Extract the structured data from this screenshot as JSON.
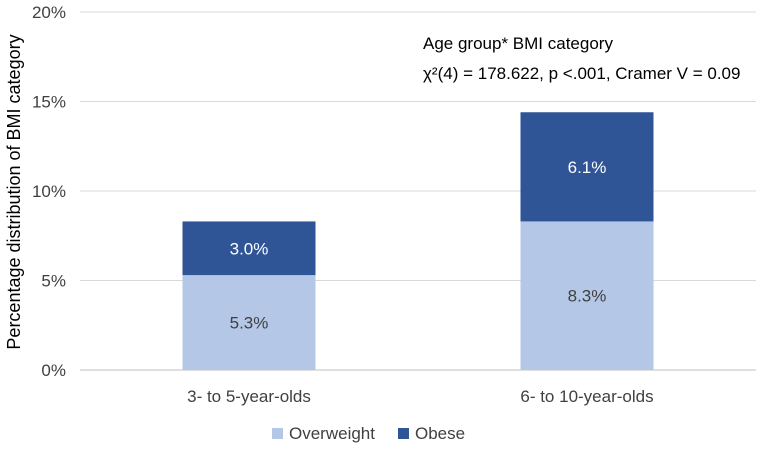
{
  "chart_data": {
    "type": "bar",
    "stacked": true,
    "title": "",
    "xlabel": "",
    "ylabel": "Percentage distribution of BMI category",
    "ylim": [
      0,
      20
    ],
    "yticks": [
      0,
      5,
      10,
      15,
      20
    ],
    "ytick_labels": [
      "0%",
      "5%",
      "10%",
      "15%",
      "20%"
    ],
    "categories": [
      "3- to 5-year-olds",
      "6- to 10-year-olds"
    ],
    "series": [
      {
        "name": "Overweight",
        "values": [
          5.3,
          8.3
        ],
        "labels": [
          "5.3%",
          "8.3%"
        ],
        "color": "#b4c7e7",
        "label_color": "#404040"
      },
      {
        "name": "Obese",
        "values": [
          3.0,
          6.1
        ],
        "labels": [
          "3.0%",
          "6.1%"
        ],
        "color": "#2f5597",
        "label_color": "#ffffff"
      }
    ],
    "annotations": [
      "Age group* BMI category",
      "χ²(4) = 178.622, p <.001, Cramer V = 0.09"
    ],
    "grid": true,
    "legend_position": "bottom"
  }
}
